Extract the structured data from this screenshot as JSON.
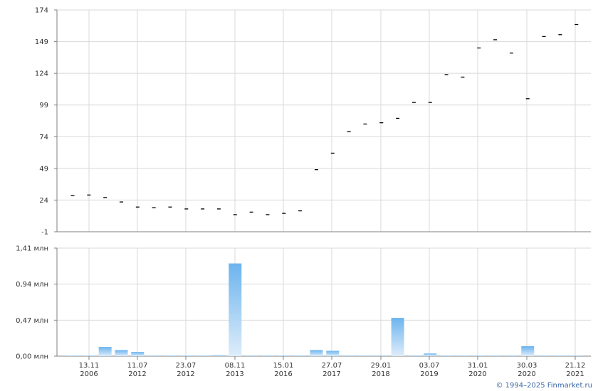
{
  "chart_data": [
    {
      "type": "scatter",
      "marker": "dash",
      "y_ticks": [
        "174",
        "149",
        "124",
        "99",
        "74",
        "49",
        "24",
        "-1"
      ],
      "ylim": [
        -1,
        174
      ],
      "x_tick_labels": [
        {
          "day": "13.11",
          "year": "2006"
        },
        {
          "day": "11.07",
          "year": "2012"
        },
        {
          "day": "23.07",
          "year": "2012"
        },
        {
          "day": "08.11",
          "year": "2013"
        },
        {
          "day": "15.01",
          "year": "2016"
        },
        {
          "day": "27.07",
          "year": "2017"
        },
        {
          "day": "29.01",
          "year": "2018"
        },
        {
          "day": "03.07",
          "year": "2019"
        },
        {
          "day": "31.01",
          "year": "2020"
        },
        {
          "day": "30.03",
          "year": "2020"
        },
        {
          "day": "21.12",
          "year": "2021"
        }
      ],
      "values": [
        27.5,
        28,
        26,
        22.5,
        18.5,
        18,
        18.5,
        17,
        17,
        17,
        12.5,
        14.5,
        12.5,
        13.5,
        15.5,
        48,
        61,
        78,
        84,
        85,
        88.5,
        101,
        101,
        123,
        121,
        144,
        150.5,
        140,
        104,
        153,
        154.5,
        162.5
      ]
    },
    {
      "type": "bar",
      "y_ticks": [
        "1,41 млн",
        "0,94 млн",
        "0,47 млн",
        "0,00 млн"
      ],
      "ylim": [
        0,
        1.41
      ],
      "unit": "млн",
      "values": [
        0.005,
        0.005,
        0.12,
        0.08,
        0.055,
        0.005,
        0.01,
        0.005,
        0.005,
        0.015,
        1.21,
        0.005,
        0.005,
        0.01,
        0.01,
        0.08,
        0.07,
        0.005,
        0.005,
        0.005,
        0.5,
        0.01,
        0.035,
        0.005,
        0.005,
        0.005,
        0.005,
        0.005,
        0.13,
        0.005,
        0.005,
        0.005
      ]
    }
  ],
  "footer": {
    "credit": "© 1994–2025 Finmarket.ru"
  },
  "colors": {
    "grid": "#d9d9d9",
    "axis": "#808080",
    "marker": "#000000",
    "bar_top": "#6cb4ee",
    "bar_bottom": "#deedfa",
    "credit": "#3a67a8"
  }
}
